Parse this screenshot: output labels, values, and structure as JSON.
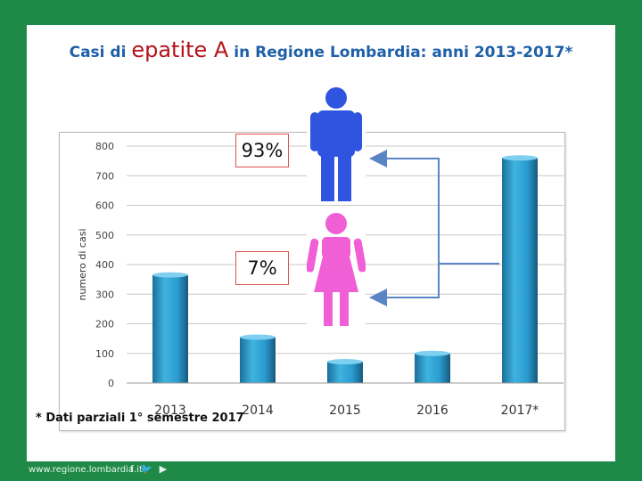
{
  "title": {
    "prefix": "Casi di ",
    "highlight": "epatite A",
    "suffix": " in Regione Lombardia: anni 2013-2017*"
  },
  "footnote": "*  Dati parziali 1° semestre 2017",
  "footer": {
    "url": "www.regione.lombardia.it",
    "social_icons": [
      "facebook-icon",
      "twitter-icon",
      "youtube-icon"
    ]
  },
  "colors": {
    "background": "#1f8a47",
    "bar": "#2a9ccf",
    "title": "#1f5fa8",
    "highlight": "#b5121b",
    "male": "#2f55e0",
    "female": "#f05fd6",
    "arrow": "#5b84c4"
  },
  "gender_split": {
    "male_pct": "93%",
    "female_pct": "7%"
  },
  "chart_data": {
    "type": "bar",
    "title": "Casi di epatite A in Regione Lombardia: anni 2013-2017*",
    "ylabel": "numero di casi",
    "xlabel": "",
    "categories": [
      "2013",
      "2014",
      "2015",
      "2016",
      "2017*"
    ],
    "values": [
      365,
      155,
      72,
      100,
      760
    ],
    "ylim": [
      0,
      800
    ],
    "yticks": [
      "0",
      "100",
      "200",
      "300",
      "400",
      "500",
      "600",
      "700",
      "800"
    ],
    "grid": true
  }
}
